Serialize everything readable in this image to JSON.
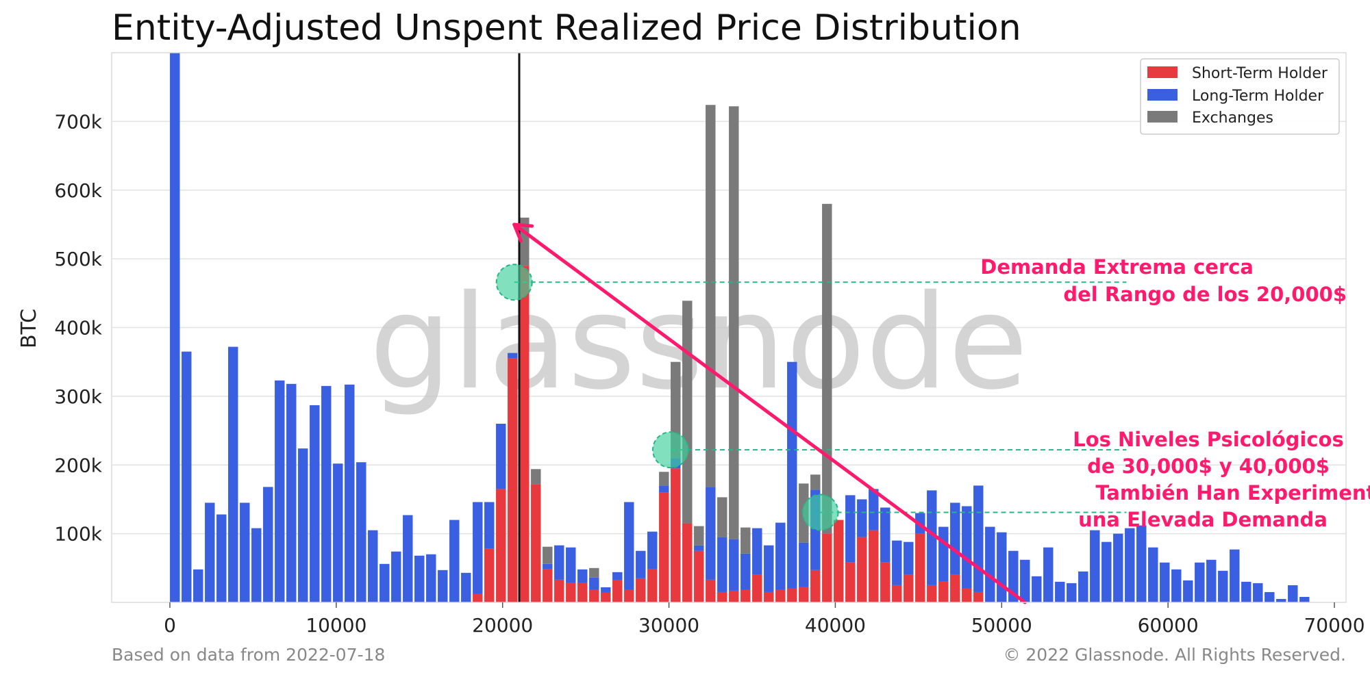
{
  "colors": {
    "short_term": "#e8393f",
    "long_term": "#3a5fe0",
    "exchanges": "#7a7a7a",
    "annotation": "#ff1a6e",
    "circle": "#3ecf9a",
    "dashed": "#27b587",
    "grid": "#e2e2e2"
  },
  "watermark": "glassnode",
  "footer": {
    "left": "Based on data from 2022-07-18",
    "right": "© 2022 Glassnode. All Rights Reserved."
  },
  "chart_data": {
    "type": "bar",
    "title": "Entity-Adjusted Unspent Realized Price Distribution",
    "xlabel": "",
    "ylabel": "BTC",
    "xlim": [
      -3500,
      70700
    ],
    "ylim": [
      0,
      800000
    ],
    "xticks": [
      0,
      10000,
      20000,
      30000,
      40000,
      50000,
      60000,
      70000
    ],
    "xtick_labels": [
      "0",
      "10000",
      "20000",
      "30000",
      "40000",
      "50000",
      "60000",
      "70000"
    ],
    "yticks": [
      100000,
      200000,
      300000,
      400000,
      500000,
      600000,
      700000
    ],
    "ytick_labels": [
      "100k",
      "200k",
      "300k",
      "400k",
      "500k",
      "600k",
      "700k"
    ],
    "grid": true,
    "stacked": true,
    "bin_width": 700,
    "legend": {
      "position": "top-right",
      "entries": [
        "Short-Term Holder",
        "Long-Term Holder",
        "Exchanges"
      ]
    },
    "x": [
      300,
      1000,
      1700,
      2400,
      3100,
      3800,
      4500,
      5200,
      5900,
      6600,
      7300,
      8000,
      8700,
      9400,
      10100,
      10800,
      11500,
      12200,
      12900,
      13600,
      14300,
      15000,
      15700,
      16400,
      17100,
      17800,
      18500,
      19200,
      19900,
      20600,
      21300,
      22000,
      22700,
      23400,
      24100,
      24800,
      25500,
      26200,
      26900,
      27600,
      28300,
      29000,
      29700,
      30400,
      31100,
      31800,
      32500,
      33200,
      33900,
      34600,
      35300,
      36000,
      36700,
      37400,
      38100,
      38800,
      39500,
      40200,
      40900,
      41600,
      42300,
      43000,
      43700,
      44400,
      45100,
      45800,
      46500,
      47200,
      47900,
      48600,
      49300,
      50000,
      50700,
      51400,
      52100,
      52800,
      53500,
      54200,
      54900,
      55600,
      56300,
      57000,
      57700,
      58400,
      59100,
      59800,
      60500,
      61200,
      61900,
      62600,
      63300,
      64000,
      64700,
      65400,
      66100,
      66800,
      67500,
      68200
    ],
    "series": [
      {
        "name": "Short-Term Holder",
        "values": [
          0,
          0,
          0,
          0,
          0,
          0,
          0,
          0,
          0,
          0,
          0,
          0,
          0,
          0,
          0,
          0,
          0,
          0,
          0,
          0,
          0,
          0,
          0,
          0,
          0,
          0,
          12000,
          78000,
          165000,
          355000,
          490000,
          172000,
          48000,
          33000,
          28000,
          28000,
          18000,
          14000,
          32000,
          18000,
          35000,
          48000,
          160000,
          195000,
          115000,
          75000,
          33000,
          15000,
          17000,
          18000,
          40000,
          15000,
          18000,
          20000,
          22000,
          47000,
          100000,
          120000,
          58000,
          95000,
          105000,
          58000,
          25000,
          40000,
          100000,
          25000,
          30000,
          40000,
          20000,
          15000,
          0,
          0,
          0,
          0,
          0,
          0,
          0,
          0,
          0,
          0,
          0,
          0,
          0,
          0,
          0,
          0,
          0,
          0,
          0,
          0,
          0,
          0,
          0,
          0,
          0,
          0,
          0,
          0
        ]
      },
      {
        "name": "Long-Term Holder",
        "values": [
          800000,
          365000,
          48000,
          145000,
          128000,
          372000,
          145000,
          108000,
          168000,
          323000,
          318000,
          224000,
          287000,
          315000,
          202000,
          317000,
          204000,
          105000,
          56000,
          74000,
          127000,
          68000,
          70000,
          47000,
          120000,
          43000,
          134000,
          68000,
          95000,
          8000,
          0,
          0,
          8000,
          50000,
          52000,
          20000,
          18000,
          8000,
          12000,
          128000,
          40000,
          55000,
          10000,
          15000,
          0,
          8000,
          135000,
          80000,
          75000,
          53000,
          68000,
          68000,
          98000,
          330000,
          65000,
          117000,
          0,
          0,
          98000,
          55000,
          60000,
          80000,
          65000,
          48000,
          30000,
          138000,
          80000,
          105000,
          120000,
          155000,
          110000,
          102000,
          75000,
          62000,
          38000,
          80000,
          30000,
          28000,
          45000,
          105000,
          88000,
          100000,
          108000,
          112000,
          80000,
          58000,
          48000,
          32000,
          58000,
          62000,
          46000,
          77000,
          30000,
          28000,
          15000,
          5000,
          25000,
          8000
        ]
      },
      {
        "name": "Exchanges",
        "values": [
          0,
          0,
          0,
          0,
          0,
          0,
          0,
          0,
          0,
          0,
          0,
          0,
          0,
          0,
          0,
          0,
          0,
          0,
          0,
          0,
          0,
          0,
          0,
          0,
          0,
          0,
          0,
          0,
          0,
          0,
          70000,
          22000,
          25000,
          0,
          0,
          0,
          14000,
          0,
          0,
          0,
          0,
          0,
          20000,
          140000,
          324000,
          28000,
          556000,
          58000,
          630000,
          38000,
          0,
          0,
          0,
          0,
          86000,
          22000,
          480000,
          0,
          0,
          0,
          0,
          0,
          0,
          0,
          0,
          0,
          0,
          0,
          0,
          0,
          0,
          0,
          0,
          0,
          0,
          0,
          0,
          0,
          0,
          0,
          0,
          0,
          0,
          0,
          0,
          0,
          0,
          0,
          0,
          0,
          0,
          0,
          0,
          0,
          0,
          0,
          0,
          0
        ]
      }
    ],
    "vline": {
      "x": 21000
    },
    "arrow": {
      "from": [
        51400,
        0
      ],
      "to": [
        20700,
        550000
      ]
    },
    "markers": [
      {
        "x": 20700,
        "y": 466000,
        "line_to_x": 57500
      },
      {
        "x": 30100,
        "y": 222000,
        "line_to_x": 57500
      },
      {
        "x": 39100,
        "y": 131000,
        "line_to_x": 57500
      }
    ],
    "annotations": [
      {
        "lines": [
          "Demanda Extrema cerca",
          "del Rango de los 20,000$"
        ]
      },
      {
        "lines": [
          "Los Niveles Psicológicos",
          "de 30,000$ y 40,000$",
          "También Han Experimentado",
          "una Elevada Demanda"
        ]
      }
    ]
  }
}
